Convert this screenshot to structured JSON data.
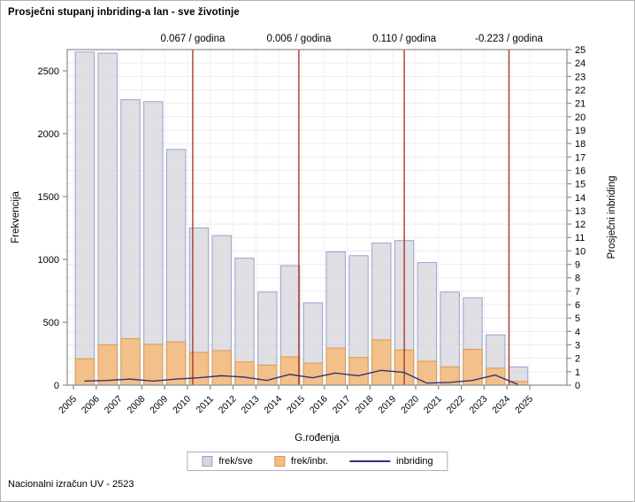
{
  "title": "Prosječni stupanj inbriding-a lan - sve životinje",
  "footer": "Nacionalni izračun UV - 2523",
  "legend": {
    "items": [
      "frek/sve",
      "frek/inbr.",
      "inbriding"
    ]
  },
  "colors": {
    "bar_all_fill": "#d6d6dd",
    "bar_all_stroke": "#99a3cc",
    "bar_inbr_fill": "#f4bd82",
    "bar_inbr_stroke": "#d9984f",
    "line_inbriding": "#2e3474",
    "reference_line": "#a63a2f",
    "grid": "#ececec",
    "frame": "#8c8c8c"
  },
  "chart_data": {
    "type": "bar",
    "subtype": "overlaid-bars-with-line",
    "title": "Prosječni stupanj inbriding-a lan - sve životinje",
    "xlabel": "G.rođenja",
    "ylabel_left": "Frekvencija",
    "ylabel_right": "Prosječni inbriding",
    "grid": true,
    "legend_position": "bottom-center",
    "categories": [
      "2005",
      "2006",
      "2007",
      "2008",
      "2009",
      "2010",
      "2011",
      "2012",
      "2013",
      "2014",
      "2015",
      "2016",
      "2017",
      "2018",
      "2019",
      "2020",
      "2021",
      "2022",
      "2023",
      "2024",
      "2025"
    ],
    "series": [
      {
        "name": "frek/sve",
        "type": "bar",
        "axis": "left",
        "values": [
          2650,
          2640,
          2270,
          2255,
          1875,
          1250,
          1190,
          1010,
          740,
          950,
          655,
          1060,
          1030,
          1130,
          1150,
          975,
          740,
          695,
          400,
          145,
          null
        ]
      },
      {
        "name": "frek/inbr.",
        "type": "bar",
        "axis": "left",
        "values": [
          210,
          320,
          370,
          325,
          345,
          260,
          275,
          185,
          160,
          225,
          175,
          295,
          220,
          360,
          280,
          190,
          145,
          285,
          135,
          30,
          null
        ]
      },
      {
        "name": "inbriding",
        "type": "line",
        "axis": "right",
        "values": [
          0.3,
          0.35,
          0.45,
          0.3,
          0.45,
          0.55,
          0.7,
          0.6,
          0.35,
          0.8,
          0.55,
          0.9,
          0.7,
          1.1,
          0.95,
          0.15,
          0.2,
          0.35,
          0.75,
          0.05,
          null
        ]
      }
    ],
    "axes": {
      "left": {
        "label": "Frekvencija",
        "ticks": [
          0,
          500,
          1000,
          1500,
          2000,
          2500
        ],
        "min": 0,
        "max": 2500
      },
      "right": {
        "label": "Prosječni inbriding",
        "min": 0,
        "max": 25,
        "step": 1
      },
      "x": {
        "label": "G.rođenja",
        "tick_rotation_deg": -45
      }
    },
    "reference_lines": [
      {
        "label": "0.067 / godina",
        "x_index": 5.23
      },
      {
        "label": "0.006 / godina",
        "x_index": 9.88
      },
      {
        "label": "0.110 / godina",
        "x_index": 14.5
      },
      {
        "label": "-0.223 / godina",
        "x_index": 19.09
      }
    ]
  }
}
